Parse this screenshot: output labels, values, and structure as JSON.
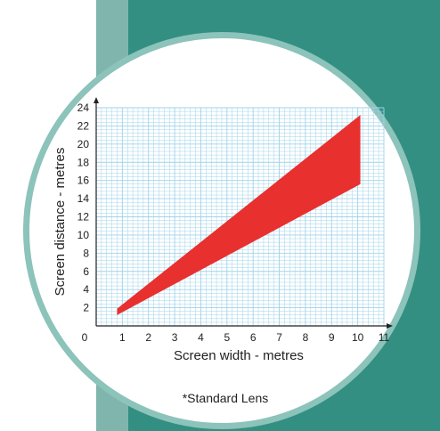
{
  "chart_data": {
    "type": "area",
    "title": "",
    "xlabel": "Screen width - metres",
    "ylabel": "Screen distance - metres",
    "xlim": [
      0,
      11
    ],
    "ylim": [
      0,
      24
    ],
    "x_ticks": [
      "0",
      "1",
      "2",
      "3",
      "4",
      "5",
      "6",
      "7",
      "8",
      "9",
      "10",
      "11"
    ],
    "y_ticks": [
      "2",
      "4",
      "6",
      "8",
      "10",
      "12",
      "14",
      "16",
      "18",
      "20",
      "22",
      "24"
    ],
    "grid": true,
    "series": [
      {
        "color": "#e8302f",
        "x": [
          0.8,
          10.1
        ],
        "upper": [
          1.9,
          23.2
        ],
        "lower": [
          1.2,
          15.6
        ]
      }
    ],
    "annotation": "*Standard Lens"
  },
  "colors": {
    "teal_panel": "#338f82",
    "light_panel": "#7fb5ac",
    "ring": "#8cc3ba",
    "grid": "#9fd3ea",
    "fill": "#e8302f"
  }
}
